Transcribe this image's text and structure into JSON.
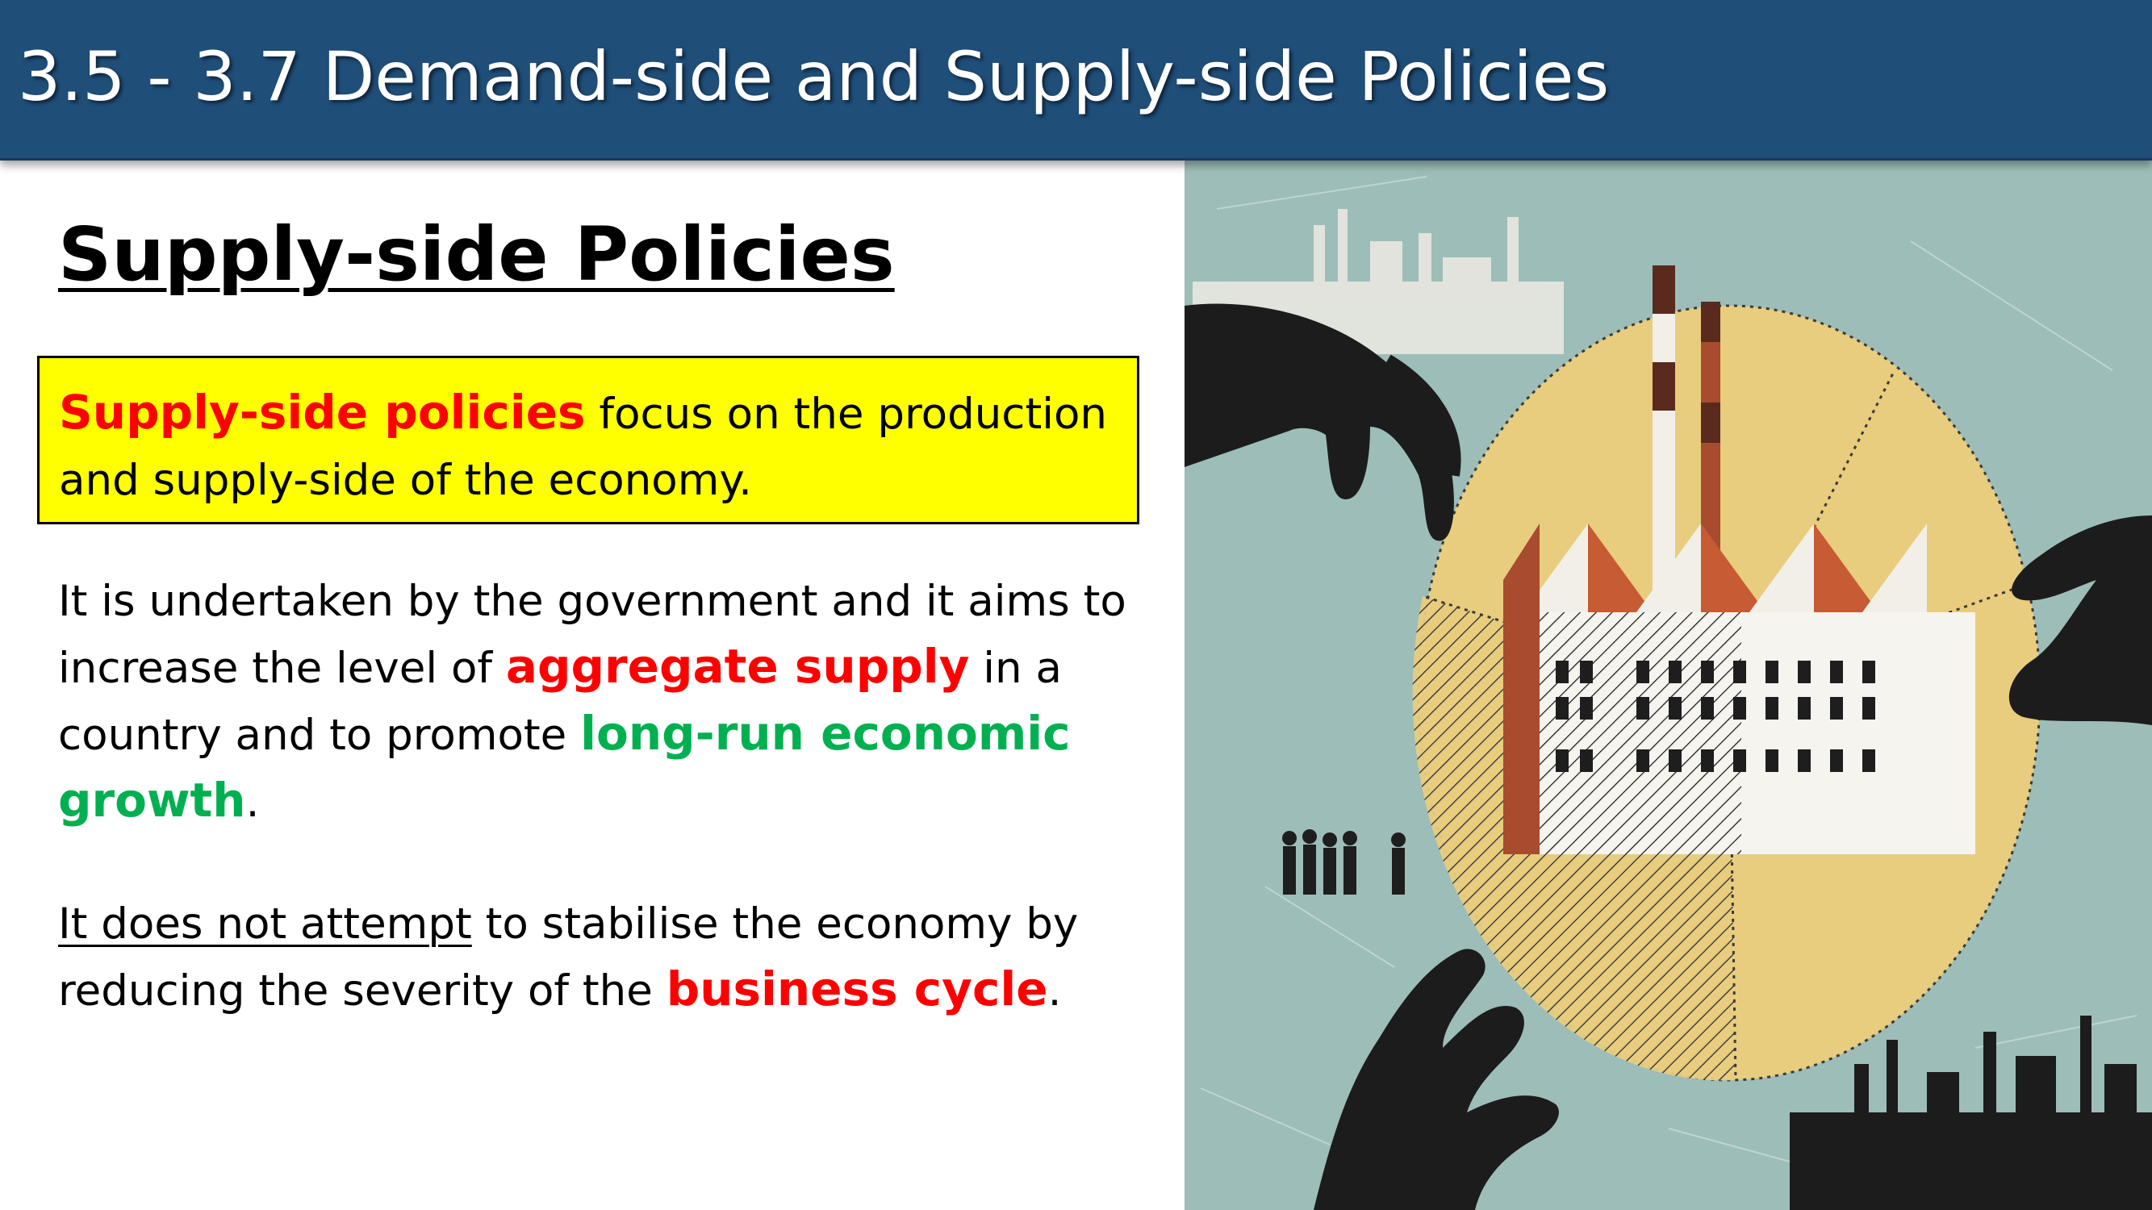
{
  "slide": {
    "title": "3.5 - 3.7 Demand-side and Supply-side Policies",
    "heading": "Supply-side Policies",
    "definition": {
      "term": "Supply-side policies",
      "text": " focus on the production and supply-side of the economy."
    },
    "aims_paragraph": {
      "part1": "It is undertaken by the government and it aims to increase the level of ",
      "keyword1": "aggregate supply",
      "part2": " in a country and to promote ",
      "keyword2": "long-run economic growth",
      "part3": "."
    },
    "stabilise_paragraph": {
      "underlined": "It does not attempt",
      "part1": " to stabilise the economy by reducing the severity of the ",
      "keyword": "business cycle",
      "part2": "."
    }
  },
  "colors": {
    "title_bar": "#1f4e79",
    "definition_box": "#ffff00",
    "red_keyword": "#ff0000",
    "green_keyword": "#00b050",
    "illustration_background": "#9dbdb8",
    "pie_yellow": "#e8cd7e"
  },
  "illustration": {
    "description_icons": [
      "hand-icon",
      "factory-icon",
      "pie-chart-icon",
      "people-silhouette-icon",
      "skyline-icon"
    ]
  }
}
